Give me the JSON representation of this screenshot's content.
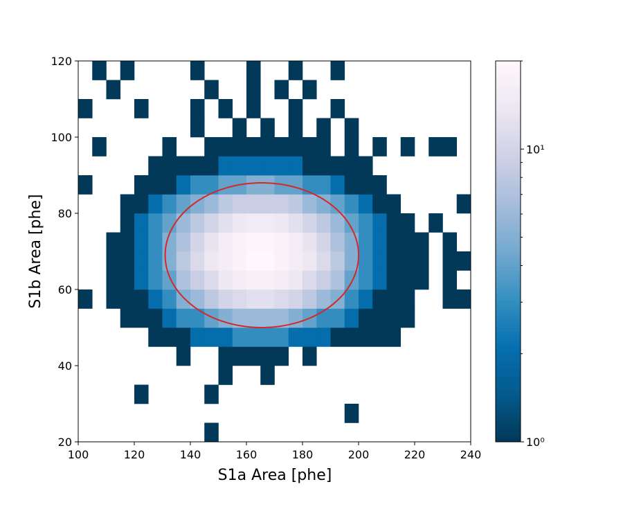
{
  "chart_data": {
    "type": "hist2d",
    "xlabel": "S1a Area [phe]",
    "ylabel": "S1b Area [phe]",
    "xlim": [
      100,
      240
    ],
    "ylim": [
      20,
      120
    ],
    "xticks": [
      100,
      120,
      140,
      160,
      180,
      200,
      220,
      240
    ],
    "yticks": [
      20,
      40,
      60,
      80,
      100,
      120
    ],
    "xbins": [
      100,
      105,
      110,
      115,
      120,
      125,
      130,
      135,
      140,
      145,
      150,
      155,
      160,
      165,
      170,
      175,
      180,
      185,
      190,
      195,
      200,
      205,
      210,
      215,
      220,
      225,
      230,
      235,
      240
    ],
    "ybins": [
      20,
      25,
      30,
      35,
      40,
      45,
      50,
      55,
      60,
      65,
      70,
      75,
      80,
      85,
      90,
      95,
      100,
      105,
      110,
      115,
      120
    ],
    "z": [
      [
        null,
        null,
        null,
        null,
        null,
        null,
        null,
        null,
        null,
        1,
        null,
        null,
        null,
        null,
        null,
        null,
        null,
        null,
        null,
        null,
        null,
        null,
        null,
        null,
        null,
        null,
        null,
        null
      ],
      [
        null,
        null,
        null,
        null,
        null,
        null,
        null,
        null,
        null,
        null,
        null,
        null,
        null,
        null,
        null,
        null,
        null,
        null,
        null,
        1,
        null,
        null,
        null,
        null,
        null,
        null,
        null,
        null
      ],
      [
        null,
        null,
        null,
        null,
        1,
        null,
        null,
        null,
        null,
        1,
        null,
        null,
        null,
        null,
        null,
        null,
        null,
        null,
        null,
        null,
        null,
        null,
        null,
        null,
        null,
        null,
        null,
        null
      ],
      [
        null,
        null,
        null,
        null,
        null,
        null,
        null,
        null,
        null,
        null,
        1,
        null,
        null,
        1,
        null,
        null,
        null,
        null,
        null,
        null,
        null,
        null,
        null,
        null,
        null,
        null,
        null,
        null
      ],
      [
        null,
        null,
        null,
        null,
        null,
        null,
        null,
        1,
        null,
        null,
        1,
        1,
        1,
        1,
        1,
        null,
        1,
        null,
        null,
        null,
        null,
        null,
        null,
        null,
        null,
        null,
        null,
        null
      ],
      [
        null,
        null,
        null,
        null,
        null,
        1,
        1,
        1,
        2,
        2,
        2,
        3,
        3,
        3,
        3,
        2,
        2,
        2,
        1,
        1,
        1,
        1,
        1,
        null,
        null,
        null,
        null,
        null
      ],
      [
        null,
        null,
        null,
        1,
        1,
        1,
        2,
        3,
        3,
        4,
        5,
        6,
        6,
        6,
        6,
        5,
        4,
        3,
        3,
        2,
        1,
        1,
        1,
        1,
        null,
        null,
        null,
        null
      ],
      [
        1,
        null,
        1,
        1,
        1,
        2,
        3,
        5,
        6,
        8,
        10,
        11,
        12,
        12,
        11,
        10,
        8,
        6,
        5,
        3,
        2,
        1,
        1,
        1,
        null,
        null,
        1,
        1
      ],
      [
        null,
        null,
        1,
        1,
        2,
        3,
        4,
        7,
        9,
        11,
        14,
        16,
        17,
        17,
        16,
        14,
        11,
        9,
        7,
        4,
        3,
        2,
        1,
        1,
        1,
        null,
        1,
        null
      ],
      [
        null,
        null,
        1,
        1,
        2,
        3,
        5,
        8,
        11,
        14,
        16,
        18,
        20,
        20,
        18,
        16,
        14,
        11,
        8,
        5,
        3,
        2,
        1,
        1,
        1,
        null,
        1,
        1
      ],
      [
        null,
        null,
        1,
        1,
        2,
        3,
        5,
        7,
        10,
        13,
        16,
        18,
        19,
        19,
        18,
        16,
        13,
        10,
        7,
        5,
        3,
        2,
        1,
        1,
        1,
        null,
        1,
        null
      ],
      [
        null,
        null,
        null,
        1,
        2,
        3,
        4,
        6,
        8,
        10,
        12,
        14,
        15,
        15,
        14,
        12,
        10,
        8,
        6,
        4,
        3,
        2,
        1,
        1,
        null,
        1,
        null,
        null
      ],
      [
        null,
        null,
        null,
        1,
        1,
        2,
        3,
        4,
        5,
        6,
        8,
        9,
        9,
        9,
        9,
        8,
        6,
        5,
        4,
        3,
        2,
        1,
        1,
        null,
        null,
        null,
        null,
        1
      ],
      [
        1,
        null,
        null,
        null,
        1,
        1,
        1,
        2,
        3,
        3,
        4,
        4,
        5,
        5,
        4,
        4,
        3,
        3,
        2,
        1,
        1,
        1,
        null,
        null,
        null,
        null,
        null,
        null
      ],
      [
        null,
        null,
        null,
        null,
        null,
        1,
        1,
        1,
        1,
        1,
        2,
        2,
        2,
        2,
        2,
        2,
        1,
        1,
        1,
        1,
        1,
        null,
        null,
        null,
        null,
        null,
        null,
        null
      ],
      [
        null,
        1,
        null,
        null,
        null,
        null,
        1,
        null,
        null,
        1,
        1,
        1,
        1,
        1,
        1,
        1,
        1,
        1,
        null,
        1,
        null,
        1,
        null,
        1,
        null,
        1,
        1,
        null
      ],
      [
        null,
        null,
        null,
        null,
        null,
        null,
        null,
        null,
        1,
        null,
        null,
        1,
        null,
        1,
        null,
        1,
        null,
        1,
        null,
        1,
        null,
        null,
        null,
        null,
        null,
        null,
        null,
        null
      ],
      [
        1,
        null,
        null,
        null,
        1,
        null,
        null,
        null,
        1,
        null,
        1,
        null,
        1,
        null,
        null,
        1,
        null,
        null,
        1,
        null,
        null,
        null,
        null,
        null,
        null,
        null,
        null,
        null
      ],
      [
        null,
        null,
        1,
        null,
        null,
        null,
        null,
        null,
        null,
        1,
        null,
        null,
        1,
        null,
        1,
        null,
        1,
        null,
        null,
        null,
        null,
        null,
        null,
        null,
        null,
        null,
        null,
        null
      ],
      [
        null,
        1,
        null,
        1,
        null,
        null,
        null,
        null,
        1,
        null,
        null,
        null,
        1,
        null,
        null,
        1,
        null,
        null,
        1,
        null,
        null,
        null,
        null,
        null,
        null,
        null,
        null,
        null
      ]
    ],
    "colormap": [
      "#023858",
      "#045a8d",
      "#0570b0",
      "#3690c0",
      "#74a9cf",
      "#a6bddb",
      "#d0d1e6",
      "#ece7f2",
      "#fff7fb"
    ],
    "log_color": true,
    "clim": [
      1,
      20
    ],
    "cticks": [
      {
        "value": 1,
        "label": "10⁰"
      },
      {
        "value": 10,
        "label": "10¹"
      }
    ],
    "cminor_ticks": [
      2,
      3,
      4,
      5,
      6,
      7,
      8,
      9,
      20
    ],
    "ellipse": {
      "cx": 165.5,
      "cy": 69,
      "rx": 34.5,
      "ry": 19,
      "color": "#d62728"
    }
  }
}
